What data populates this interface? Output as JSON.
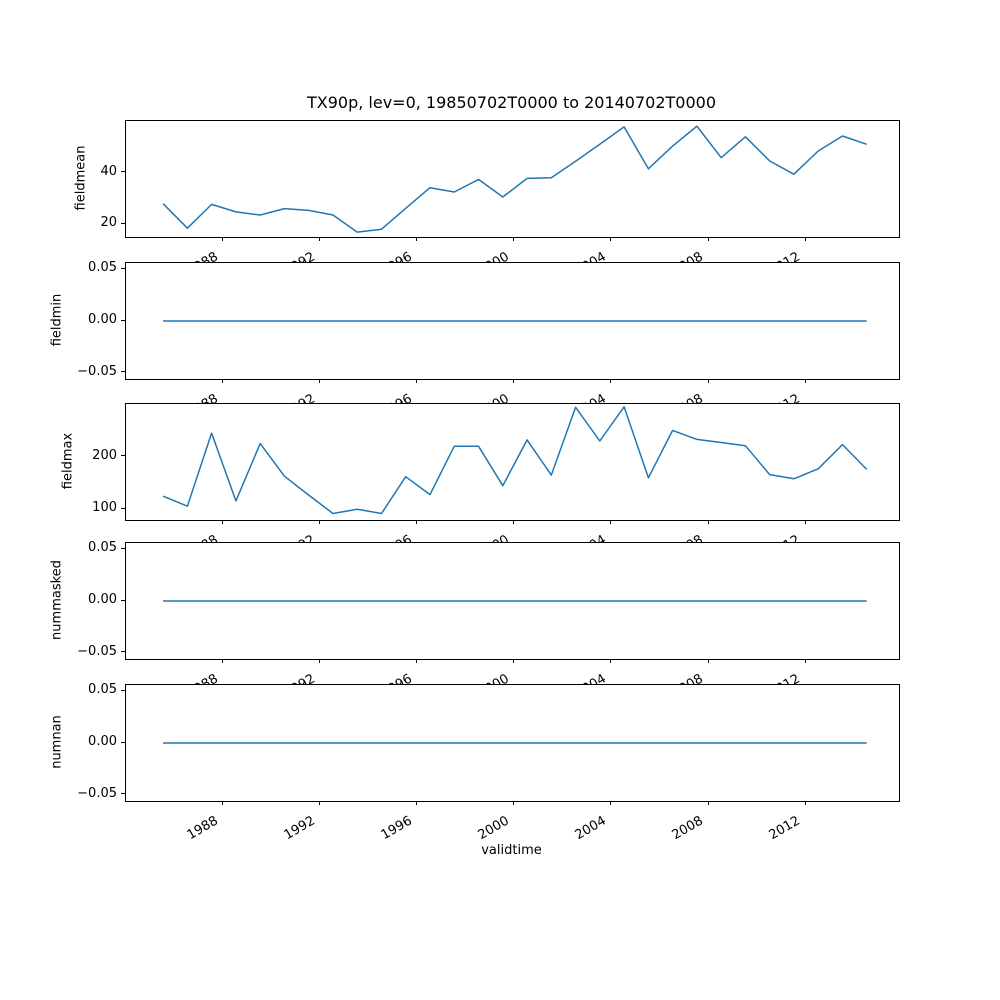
{
  "chart_data": {
    "type": "line",
    "title": "TX90p, lev=0, 19850702T0000 to 20140702T0000",
    "xlabel": "validtime",
    "line_color": "#1f77b4",
    "grid": false,
    "legend": "none",
    "x_unit": "year (data points at July 2 of each year, 1985-2014)",
    "x": [
      1985.5,
      1986.5,
      1987.5,
      1988.5,
      1989.5,
      1990.5,
      1991.5,
      1992.5,
      1993.5,
      1994.5,
      1995.5,
      1996.5,
      1997.5,
      1998.5,
      1999.5,
      2000.5,
      2001.5,
      2002.5,
      2003.5,
      2004.5,
      2005.5,
      2006.5,
      2007.5,
      2008.5,
      2009.5,
      2010.5,
      2011.5,
      2012.5,
      2013.5,
      2014.5
    ],
    "xlim": [
      1983.97,
      2015.83
    ],
    "xtick_vals": [
      1988,
      1992,
      1996,
      2000,
      2004,
      2008,
      2012
    ],
    "xtick_labels": [
      "1988",
      "1992",
      "1996",
      "2000",
      "2004",
      "2008",
      "2012"
    ],
    "xtick_rotation_deg": 30,
    "subplots": [
      {
        "ylabel": "fieldmean",
        "ylim": [
          15.1,
          60.0
        ],
        "ytick_vals": [
          20,
          40
        ],
        "ytick_labels": [
          "20",
          "40"
        ],
        "values": [
          28.0,
          18.5,
          27.7,
          24.8,
          23.6,
          26.1,
          25.4,
          23.6,
          17.0,
          18.1,
          26.2,
          34.2,
          32.5,
          37.4,
          30.6,
          37.8,
          38.0,
          44.4,
          51.0,
          57.7,
          41.5,
          50.3,
          58.0,
          45.8,
          53.9,
          44.5,
          39.4,
          48.4,
          54.2,
          51.0
        ]
      },
      {
        "ylabel": "fieldmin",
        "ylim": [
          -0.0558,
          0.0558
        ],
        "ytick_vals": [
          -0.05,
          0.0,
          0.05
        ],
        "ytick_labels": [
          "−0.05",
          "0.00",
          "0.05"
        ],
        "values": [
          0,
          0,
          0,
          0,
          0,
          0,
          0,
          0,
          0,
          0,
          0,
          0,
          0,
          0,
          0,
          0,
          0,
          0,
          0,
          0,
          0,
          0,
          0,
          0,
          0,
          0,
          0,
          0,
          0,
          0
        ]
      },
      {
        "ylabel": "fieldmax",
        "ylim": [
          79.7,
          300.3
        ],
        "ytick_vals": [
          100,
          200
        ],
        "ytick_labels": [
          "100",
          "200"
        ],
        "values": [
          125,
          106,
          245,
          116,
          225,
          163,
          127,
          92,
          100,
          92,
          162,
          128,
          220,
          220,
          145,
          232,
          165,
          294,
          230,
          295,
          160,
          250,
          233,
          227,
          221,
          166,
          158,
          177,
          223,
          176
        ]
      },
      {
        "ylabel": "nummasked",
        "ylim": [
          -0.0558,
          0.0558
        ],
        "ytick_vals": [
          -0.05,
          0.0,
          0.05
        ],
        "ytick_labels": [
          "−0.05",
          "0.00",
          "0.05"
        ],
        "values": [
          0,
          0,
          0,
          0,
          0,
          0,
          0,
          0,
          0,
          0,
          0,
          0,
          0,
          0,
          0,
          0,
          0,
          0,
          0,
          0,
          0,
          0,
          0,
          0,
          0,
          0,
          0,
          0,
          0,
          0
        ]
      },
      {
        "ylabel": "numnan",
        "ylim": [
          -0.0558,
          0.0558
        ],
        "ytick_vals": [
          -0.05,
          0.0,
          0.05
        ],
        "ytick_labels": [
          "−0.05",
          "0.00",
          "0.05"
        ],
        "values": [
          0,
          0,
          0,
          0,
          0,
          0,
          0,
          0,
          0,
          0,
          0,
          0,
          0,
          0,
          0,
          0,
          0,
          0,
          0,
          0,
          0,
          0,
          0,
          0,
          0,
          0,
          0,
          0,
          0,
          0
        ]
      }
    ]
  }
}
